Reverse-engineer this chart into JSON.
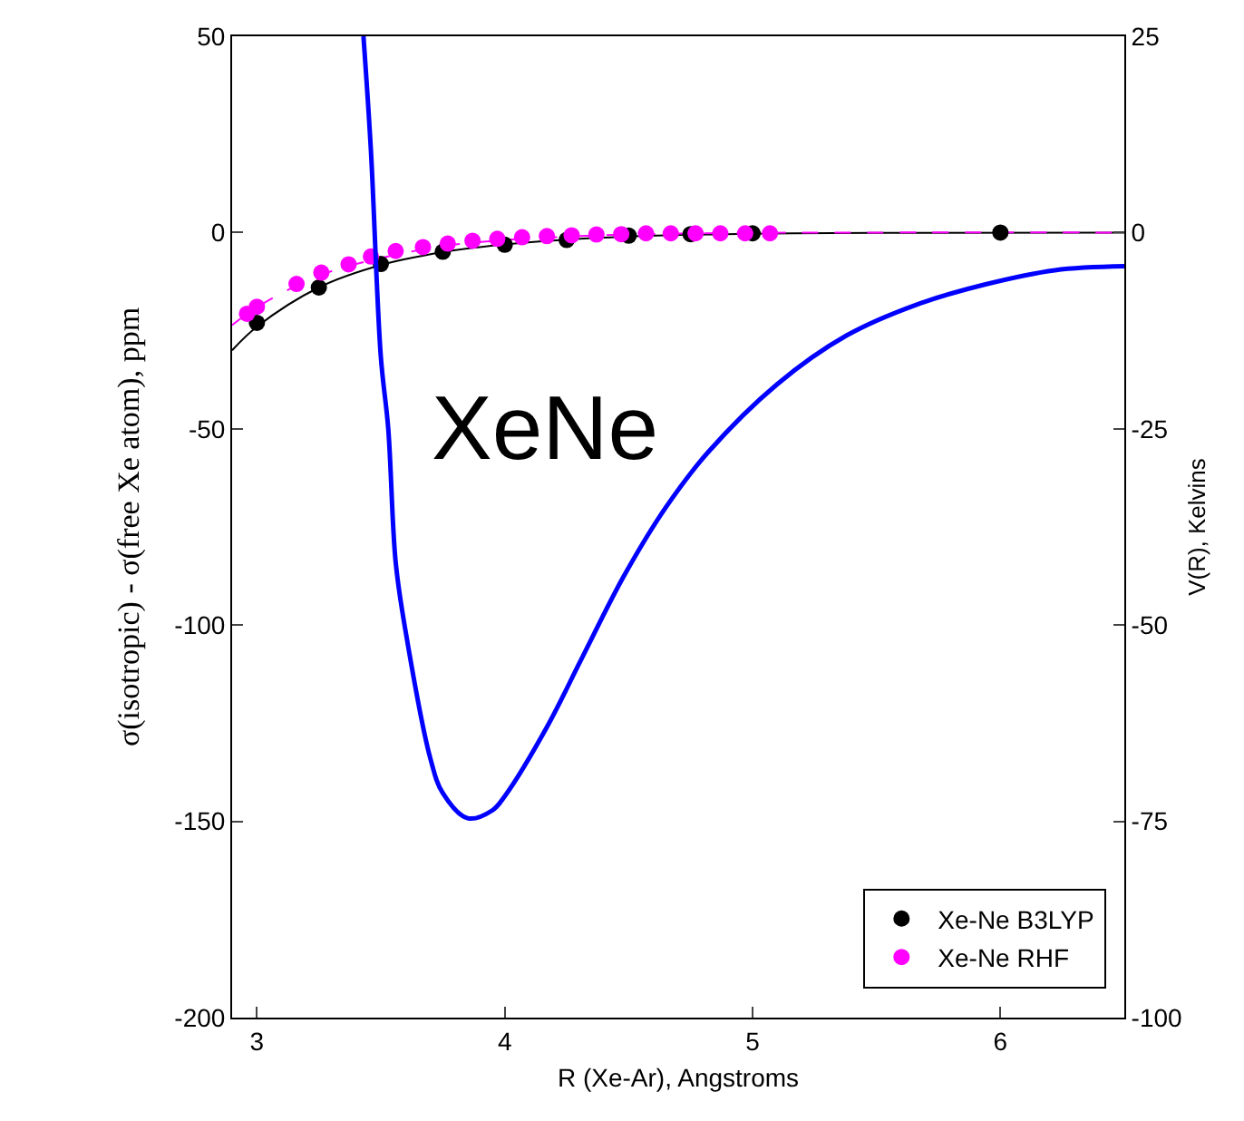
{
  "chart_data": {
    "type": "scatter",
    "xlabel": "R (Xe-Ar), Angstroms",
    "ylabel": "σ(isotropic) - σ(free Xe atom), ppm",
    "y2label": "V(R), Kelvins",
    "annotations": [
      "XeNe"
    ],
    "xlim": [
      2.9,
      6.5
    ],
    "xticks": [
      3,
      4,
      5,
      6
    ],
    "ylim": [
      -200,
      50
    ],
    "yticks": [
      -200,
      -150,
      -100,
      -50,
      0,
      50
    ],
    "y2lim": [
      -100,
      25
    ],
    "y2ticks": [
      -100,
      -75,
      -50,
      -25,
      0,
      25
    ],
    "grid": false,
    "legend": "bottom right",
    "series": [
      {
        "type": "line",
        "color": "#000000",
        "line_style": "solid",
        "marker": "none",
        "x": [
          2.9,
          3.0,
          3.25,
          3.5,
          3.75,
          4.0,
          4.5,
          5.0,
          5.5,
          6.5
        ],
        "values": [
          -30,
          -24,
          -14,
          -8.3,
          -5,
          -3,
          -1,
          -0.3,
          -0.1,
          0
        ]
      },
      {
        "type": "line",
        "color": "#ff00ff",
        "line_style": "dashed",
        "marker": "none",
        "x": [
          2.9,
          3.0,
          3.25,
          3.5,
          3.75,
          4.0,
          4.5,
          5.0,
          5.5,
          6.5
        ],
        "values": [
          -23.6,
          -19,
          -11,
          -6.5,
          -3.5,
          -1.9,
          -0.5,
          -0.1,
          0,
          0
        ]
      },
      {
        "type": "line",
        "color": "#0000ff",
        "line_style": "solid",
        "marker": "none",
        "axis": "y2",
        "x": [
          3.43,
          3.46,
          3.5,
          3.53,
          3.56,
          3.6,
          3.7,
          3.75,
          3.85,
          3.95,
          4.0,
          4.17,
          4.31,
          4.48,
          4.65,
          4.82,
          5.1,
          5.38,
          5.66,
          5.94,
          6.22,
          6.5
        ],
        "values": [
          25,
          10.5,
          -15.8,
          -25,
          -42,
          -50.8,
          -67,
          -71.4,
          -74.6,
          -73.6,
          -71.8,
          -63,
          -54.3,
          -43.8,
          -35,
          -28,
          -19.3,
          -13.1,
          -9.2,
          -6.6,
          -4.8,
          -4.3
        ]
      },
      {
        "name": "Xe-Ne B3LYP",
        "marker": "circle",
        "color": "#000000",
        "x": [
          3.0,
          3.25,
          3.5,
          3.75,
          4.0,
          4.25,
          4.5,
          4.75,
          5.0,
          6.0
        ],
        "values": [
          -23,
          -14,
          -8,
          -4.9,
          -3.1,
          -1.9,
          -0.8,
          -0.4,
          -0.2,
          0
        ]
      },
      {
        "name": "Xe-Ne RHF",
        "marker": "circle",
        "color": "#ff00ff",
        "x": [
          2.96,
          3.0,
          3.16,
          3.26,
          3.37,
          3.46,
          3.56,
          3.67,
          3.77,
          3.87,
          3.97,
          4.07,
          4.17,
          4.27,
          4.37,
          4.47,
          4.57,
          4.67,
          4.77,
          4.87,
          4.97,
          5.07
        ],
        "values": [
          -20.7,
          -18.9,
          -13.1,
          -10.2,
          -8.1,
          -6.1,
          -4.7,
          -3.7,
          -2.8,
          -2.1,
          -1.6,
          -1.2,
          -0.9,
          -0.7,
          -0.5,
          -0.4,
          -0.2,
          -0.2,
          -0.2,
          -0.2,
          -0.2,
          -0.2
        ]
      }
    ]
  }
}
